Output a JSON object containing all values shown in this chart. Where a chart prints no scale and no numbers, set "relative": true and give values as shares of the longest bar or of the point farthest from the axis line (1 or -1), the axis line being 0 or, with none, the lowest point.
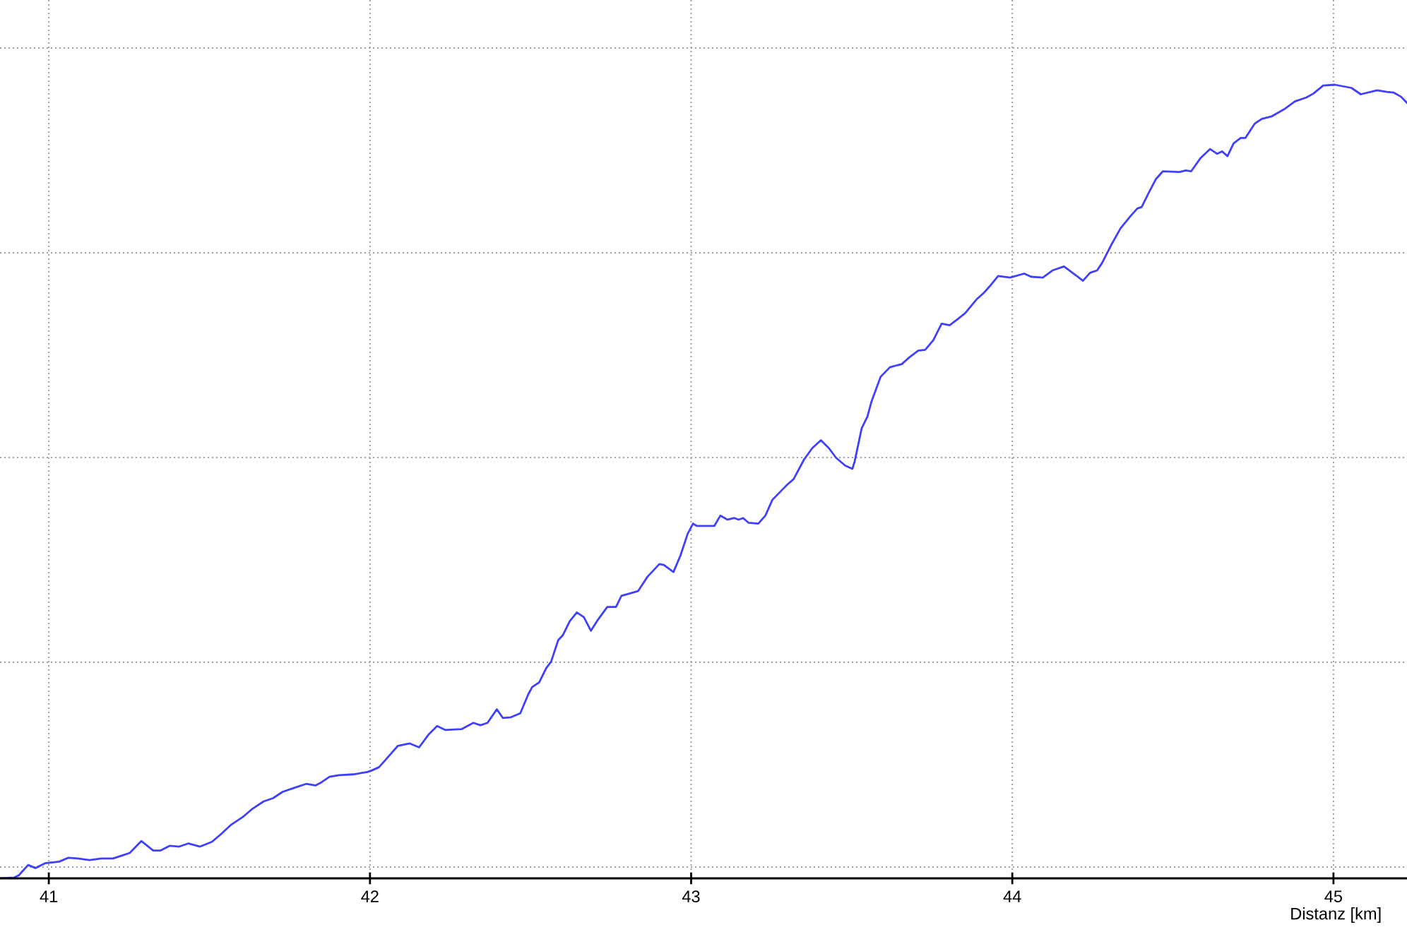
{
  "chart_data": {
    "type": "line",
    "xlabel": "Distanz [km]",
    "relative": true,
    "tick_labels": "x",
    "grid": true,
    "xlim": [
      40.848,
      45.229
    ],
    "xticks": [
      41,
      42,
      43,
      44,
      45
    ],
    "series": [
      {
        "color": "#3f3fff",
        "x": [
          40.848,
          40.892,
          40.907,
          40.936,
          40.958,
          40.988,
          41.032,
          41.061,
          41.09,
          41.127,
          41.164,
          41.2,
          41.23,
          41.252,
          41.288,
          41.325,
          41.347,
          41.376,
          41.406,
          41.435,
          41.471,
          41.508,
          41.537,
          41.566,
          41.603,
          41.632,
          41.669,
          41.698,
          41.728,
          41.764,
          41.801,
          41.83,
          41.845,
          41.874,
          41.904,
          41.948,
          41.992,
          42.006,
          42.028,
          42.05,
          42.087,
          42.124,
          42.153,
          42.182,
          42.209,
          42.234,
          42.285,
          42.322,
          42.344,
          42.366,
          42.395,
          42.414,
          42.439,
          42.468,
          42.493,
          42.505,
          42.527,
          42.549,
          42.564,
          42.586,
          42.6,
          42.622,
          42.644,
          42.666,
          42.688,
          42.71,
          42.739,
          42.766,
          42.783,
          42.835,
          42.864,
          42.901,
          42.915,
          42.945,
          42.967,
          42.989,
          43.006,
          43.018,
          43.072,
          43.091,
          43.113,
          43.135,
          43.148,
          43.162,
          43.179,
          43.209,
          43.231,
          43.253,
          43.282,
          43.299,
          43.319,
          43.352,
          43.377,
          43.404,
          43.429,
          43.451,
          43.48,
          43.502,
          43.509,
          43.531,
          43.549,
          43.561,
          43.59,
          43.619,
          43.656,
          43.678,
          43.707,
          43.729,
          43.754,
          43.78,
          43.805,
          43.831,
          43.853,
          43.89,
          43.912,
          43.934,
          43.956,
          43.993,
          44.037,
          44.059,
          44.095,
          44.125,
          44.161,
          44.191,
          44.22,
          44.242,
          44.264,
          44.279,
          44.308,
          44.337,
          44.367,
          44.389,
          44.403,
          44.425,
          44.447,
          44.469,
          44.521,
          44.54,
          44.557,
          44.587,
          44.616,
          44.638,
          44.653,
          44.67,
          44.689,
          44.711,
          44.726,
          44.755,
          44.777,
          44.807,
          44.85,
          44.88,
          44.916,
          44.938,
          44.968,
          45.004,
          45.056,
          45.085,
          45.136,
          45.166,
          45.188,
          45.21,
          45.229
        ],
        "values": [
          0,
          0.001,
          0.004,
          0.017,
          0.013,
          0.019,
          0.021,
          0.026,
          0.025,
          0.023,
          0.025,
          0.025,
          0.029,
          0.032,
          0.047,
          0.035,
          0.035,
          0.041,
          0.04,
          0.044,
          0.04,
          0.046,
          0.056,
          0.067,
          0.077,
          0.087,
          0.097,
          0.101,
          0.109,
          0.114,
          0.119,
          0.117,
          0.12,
          0.128,
          0.13,
          0.131,
          0.134,
          0.136,
          0.14,
          0.15,
          0.167,
          0.17,
          0.165,
          0.181,
          0.192,
          0.187,
          0.188,
          0.196,
          0.193,
          0.196,
          0.213,
          0.202,
          0.203,
          0.208,
          0.232,
          0.241,
          0.247,
          0.265,
          0.273,
          0.3,
          0.306,
          0.324,
          0.335,
          0.329,
          0.312,
          0.326,
          0.342,
          0.342,
          0.356,
          0.362,
          0.38,
          0.396,
          0.395,
          0.386,
          0.407,
          0.434,
          0.447,
          0.444,
          0.444,
          0.457,
          0.452,
          0.454,
          0.452,
          0.454,
          0.448,
          0.447,
          0.457,
          0.477,
          0.489,
          0.496,
          0.503,
          0.528,
          0.542,
          0.552,
          0.542,
          0.53,
          0.52,
          0.516,
          0.525,
          0.567,
          0.582,
          0.6,
          0.632,
          0.644,
          0.648,
          0.656,
          0.665,
          0.666,
          0.678,
          0.699,
          0.697,
          0.705,
          0.712,
          0.73,
          0.738,
          0.748,
          0.759,
          0.757,
          0.762,
          0.758,
          0.757,
          0.766,
          0.771,
          0.762,
          0.753,
          0.763,
          0.766,
          0.775,
          0.798,
          0.819,
          0.834,
          0.844,
          0.846,
          0.864,
          0.881,
          0.891,
          0.89,
          0.892,
          0.891,
          0.908,
          0.919,
          0.913,
          0.916,
          0.91,
          0.926,
          0.933,
          0.933,
          0.951,
          0.957,
          0.96,
          0.97,
          0.979,
          0.984,
          0.989,
          0.999,
          1,
          0.996,
          0.988,
          0.993,
          0.991,
          0.99,
          0.985,
          0.977
        ]
      }
    ]
  }
}
